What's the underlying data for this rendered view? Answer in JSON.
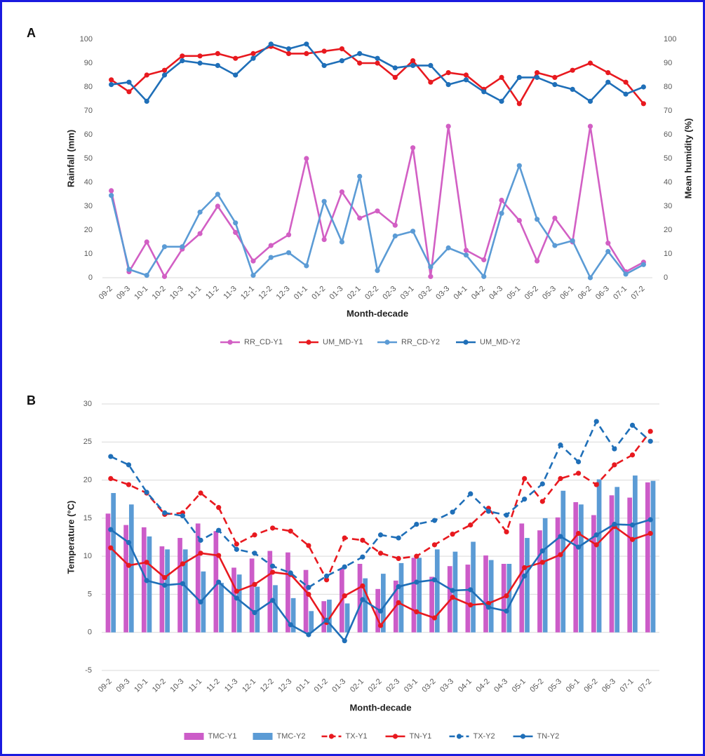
{
  "chart_data": [
    {
      "type": "line",
      "label": "A",
      "x_label": "Month-decade",
      "y_label": "Rainfall (mm)",
      "y2_label": "Mean humidity (%)",
      "categories": [
        "09-2",
        "09-3",
        "10-1",
        "10-2",
        "10-3",
        "11-1",
        "11-2",
        "11-3",
        "12-1",
        "12-2",
        "12-3",
        "01-1",
        "01-2",
        "01-3",
        "02-1",
        "02-2",
        "02-3",
        "03-1",
        "03-2",
        "03-3",
        "04-1",
        "04-2",
        "04-3",
        "05-1",
        "05-2",
        "05-3",
        "06-1",
        "06-2",
        "06-3",
        "07-1",
        "07-2"
      ],
      "ylim": [
        0,
        100
      ],
      "yticks": [
        0,
        10,
        20,
        30,
        40,
        50,
        60,
        70,
        80,
        90,
        100
      ],
      "y2lim": [
        0,
        100
      ],
      "y2ticks": [
        0,
        10,
        20,
        30,
        40,
        50,
        60,
        70,
        80,
        90,
        100
      ],
      "grid": false,
      "series": [
        {
          "name": "RR_CD-Y1",
          "color": "#d25fc4",
          "values": [
            36.5,
            2.5,
            15,
            0.5,
            12,
            18.5,
            30,
            19,
            7,
            13.5,
            18,
            50,
            16,
            36,
            25,
            28,
            22,
            54.5,
            0.5,
            63.5,
            11.5,
            7.5,
            32.5,
            24,
            7,
            25,
            15,
            63.5,
            14.5,
            2.5,
            6.5
          ]
        },
        {
          "name": "UM_MD-Y1",
          "color": "#e8191f",
          "axis": "y2",
          "values": [
            83,
            78,
            85,
            87,
            93,
            93,
            94,
            92,
            94,
            97,
            94,
            94,
            95,
            96,
            90,
            90,
            84,
            91,
            82,
            86,
            85,
            79,
            84,
            73,
            86,
            84,
            87,
            90,
            86,
            82,
            73
          ]
        },
        {
          "name": "RR_CD-Y2",
          "color": "#5b9bd5",
          "values": [
            34.5,
            3.5,
            1,
            13,
            13,
            27.5,
            35,
            23,
            1,
            8.5,
            10.5,
            5,
            32,
            15,
            42.5,
            3,
            17.5,
            19.5,
            4.5,
            12.5,
            9.5,
            0.5,
            27,
            47,
            24.5,
            13.5,
            15.5,
            0,
            11,
            1.5,
            5.5
          ]
        },
        {
          "name": "UM_MD-Y2",
          "color": "#1f6fb8",
          "axis": "y2",
          "values": [
            81,
            82,
            74,
            85,
            91,
            90,
            89,
            85,
            92,
            98,
            96,
            98,
            89,
            91,
            94,
            92,
            88,
            89,
            89,
            81,
            83,
            78,
            74,
            84,
            84,
            81,
            79,
            74,
            82,
            77,
            80
          ]
        }
      ]
    },
    {
      "type": "combo",
      "label": "B",
      "x_label": "Month-decade",
      "y_label": "Temperature (°C)",
      "categories": [
        "09-2",
        "09-3",
        "10-1",
        "10-2",
        "10-3",
        "11-1",
        "11-2",
        "11-3",
        "12-1",
        "12-2",
        "12-3",
        "01-1",
        "01-2",
        "01-3",
        "02-1",
        "02-2",
        "02-3",
        "03-1",
        "03-2",
        "03-3",
        "04-1",
        "04-2",
        "04-3",
        "05-1",
        "05-2",
        "05-3",
        "06-1",
        "06-2",
        "06-3",
        "07-1",
        "07-2"
      ],
      "ylim": [
        -5,
        30
      ],
      "yticks": [
        -5,
        0,
        5,
        10,
        15,
        20,
        25,
        30
      ],
      "grid": true,
      "series": [
        {
          "name": "TMC-Y1",
          "type": "bar",
          "color": "#cc5cc8",
          "values": [
            15.6,
            14.1,
            13.8,
            11.3,
            12.4,
            14.3,
            13.3,
            8.5,
            9.7,
            10.7,
            10.5,
            8.2,
            4.1,
            8.4,
            9.0,
            5.7,
            6.8,
            9.8,
            7.3,
            8.7,
            8.9,
            10.1,
            9.0,
            14.3,
            13.4,
            15.1,
            17.1,
            15.4,
            18.0,
            17.7,
            19.7
          ]
        },
        {
          "name": "TMC-Y2",
          "type": "bar",
          "color": "#5b9bd5",
          "values": [
            18.3,
            16.8,
            12.6,
            10.9,
            10.9,
            8.0,
            6.5,
            7.6,
            6.0,
            6.2,
            4.5,
            2.8,
            4.3,
            3.8,
            7.1,
            7.7,
            9.1,
            9.8,
            10.9,
            10.6,
            11.9,
            9.5,
            9.0,
            12.4,
            15.0,
            18.6,
            16.8,
            20.1,
            19.1,
            20.6,
            19.9
          ]
        },
        {
          "name": "TX-Y1",
          "type": "line",
          "dashed": true,
          "color": "#e8191f",
          "values": [
            20.2,
            19.4,
            18.3,
            15.5,
            15.7,
            18.3,
            16.4,
            11.6,
            12.8,
            13.7,
            13.3,
            11.4,
            6.9,
            12.4,
            12.1,
            10.4,
            9.7,
            10.0,
            11.5,
            12.9,
            14.1,
            16.3,
            13.2,
            20.2,
            17.2,
            20.2,
            20.9,
            19.4,
            22.0,
            23.3,
            26.4
          ]
        },
        {
          "name": "TN-Y1",
          "type": "line",
          "dashed": false,
          "color": "#e8191f",
          "values": [
            11.1,
            8.8,
            9.2,
            7.2,
            9.0,
            10.4,
            10.1,
            5.4,
            6.3,
            7.9,
            7.6,
            5.0,
            1.3,
            4.8,
            6.1,
            0.9,
            3.9,
            2.7,
            1.9,
            4.6,
            3.6,
            3.8,
            4.8,
            8.5,
            9.2,
            10.2,
            13.0,
            11.5,
            13.9,
            12.2,
            13.0
          ]
        },
        {
          "name": "TX-Y2",
          "type": "line",
          "dashed": true,
          "color": "#1f6fb8",
          "values": [
            23.1,
            22.0,
            18.4,
            15.7,
            15.3,
            12.1,
            13.4,
            10.9,
            10.4,
            8.7,
            7.8,
            5.9,
            7.4,
            8.6,
            9.9,
            12.8,
            12.4,
            14.2,
            14.7,
            15.8,
            18.2,
            15.9,
            15.4,
            17.5,
            19.5,
            24.6,
            22.4,
            27.7,
            24.1,
            27.2,
            25.1
          ]
        },
        {
          "name": "TN-Y2",
          "type": "line",
          "dashed": false,
          "color": "#1f6fb8",
          "values": [
            13.5,
            11.8,
            6.8,
            6.2,
            6.4,
            4.0,
            6.6,
            4.5,
            2.6,
            4.2,
            1.0,
            -0.3,
            1.6,
            -1.1,
            4.3,
            2.8,
            6.0,
            6.6,
            6.9,
            5.5,
            5.6,
            3.3,
            2.8,
            7.4,
            10.7,
            12.6,
            11.2,
            12.8,
            14.2,
            14.1,
            14.8
          ]
        }
      ]
    }
  ]
}
